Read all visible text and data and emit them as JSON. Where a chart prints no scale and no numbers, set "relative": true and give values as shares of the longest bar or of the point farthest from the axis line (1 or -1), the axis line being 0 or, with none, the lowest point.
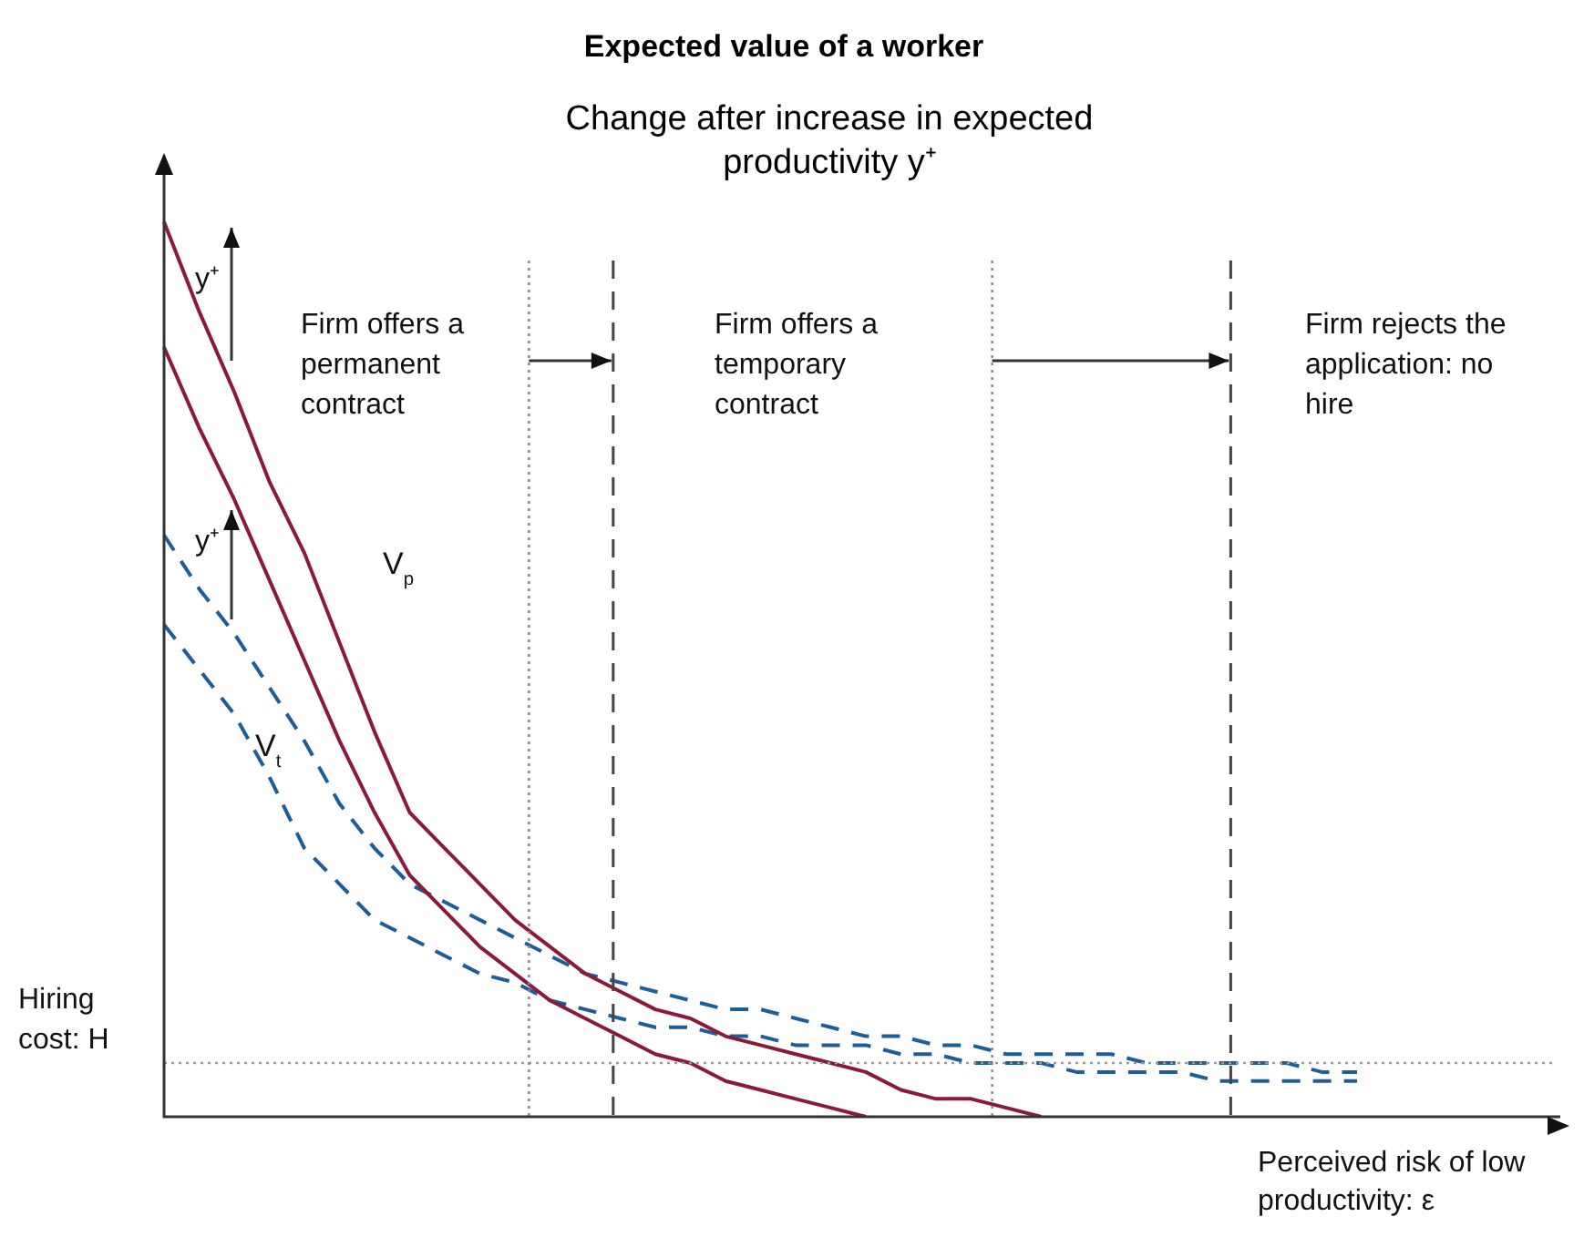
{
  "chart_data": {
    "type": "line",
    "title": "Expected value of a worker",
    "subtitle": "Change after increase in expected productivity y⁺",
    "xlabel": "Perceived risk of low productivity: ε",
    "relative": true,
    "legend": false,
    "marker": "none",
    "categories": [
      null,
      null,
      null,
      null,
      null,
      null,
      null,
      null,
      null,
      null,
      null,
      null,
      null,
      null,
      null,
      null,
      null,
      null,
      null,
      null,
      null,
      null,
      null,
      null,
      null,
      null,
      null,
      null,
      null,
      null,
      null,
      null,
      null,
      null,
      null,
      null,
      null,
      null,
      null,
      null,
      null
    ],
    "series": [
      {
        "name": "V$_{p}$",
        "color": "#8b1a3a",
        "line_style": "solid",
        "values": [
          1,
          0.9,
          0.81,
          0.71,
          0.63,
          0.53,
          0.43,
          0.34,
          0.3,
          0.26,
          0.22,
          0.19,
          0.16,
          0.14,
          0.12,
          0.11,
          0.09,
          0.08,
          0.07,
          0.06,
          0.05,
          0.03,
          0.02,
          0.02,
          0.01,
          0,
          null,
          null,
          null,
          null,
          null,
          null,
          null,
          null,
          null,
          null,
          null,
          null,
          null,
          null,
          null
        ]
      },
      {
        "color": "#8b1a3a",
        "line_style": "solid",
        "values": [
          0.86,
          0.77,
          0.69,
          0.6,
          0.51,
          0.42,
          0.34,
          0.27,
          0.23,
          0.19,
          0.16,
          0.13,
          0.11,
          0.09,
          0.07,
          0.06,
          0.04,
          0.03,
          0.02,
          0.01,
          0,
          null,
          null,
          null,
          null,
          null,
          null,
          null,
          null,
          null,
          null,
          null,
          null,
          null,
          null,
          null,
          null,
          null,
          null,
          null,
          null
        ]
      },
      {
        "color": "#1f5d99",
        "line_style": "dashed",
        "values": [
          0.65,
          0.59,
          0.54,
          0.48,
          0.42,
          0.35,
          0.3,
          0.26,
          0.24,
          0.22,
          0.2,
          0.18,
          0.16,
          0.15,
          0.14,
          0.13,
          0.12,
          0.12,
          0.11,
          0.1,
          0.09,
          0.09,
          0.08,
          0.08,
          0.07,
          0.07,
          0.07,
          0.07,
          0.06,
          0.06,
          0.06,
          0.06,
          0.06,
          0.05,
          0.05,
          null,
          null,
          null,
          null,
          null,
          null
        ]
      },
      {
        "name": "V$_{t}$",
        "color": "#1f5d99",
        "line_style": "dashed",
        "values": [
          0.55,
          0.5,
          0.45,
          0.38,
          0.3,
          0.26,
          0.22,
          0.2,
          0.18,
          0.16,
          0.15,
          0.13,
          0.12,
          0.11,
          0.1,
          0.1,
          0.09,
          0.09,
          0.08,
          0.08,
          0.08,
          0.07,
          0.07,
          0.06,
          0.06,
          0.06,
          0.05,
          0.05,
          0.05,
          0.05,
          0.04,
          0.04,
          0.04,
          0.04,
          0.04,
          null,
          null,
          null,
          null,
          null,
          null
        ]
      }
    ],
    "ref_lines": [
      {
        "axis": "y",
        "value": 0.06,
        "line_style": "dotted",
        "color": "#999999",
        "label": "Hiring cost: H"
      }
    ],
    "annotations": [
      "Firm offers a permanent contract",
      "Firm offers a temporary contract",
      "Firm rejects the application: no hire",
      "y⁺",
      "y⁺"
    ]
  }
}
